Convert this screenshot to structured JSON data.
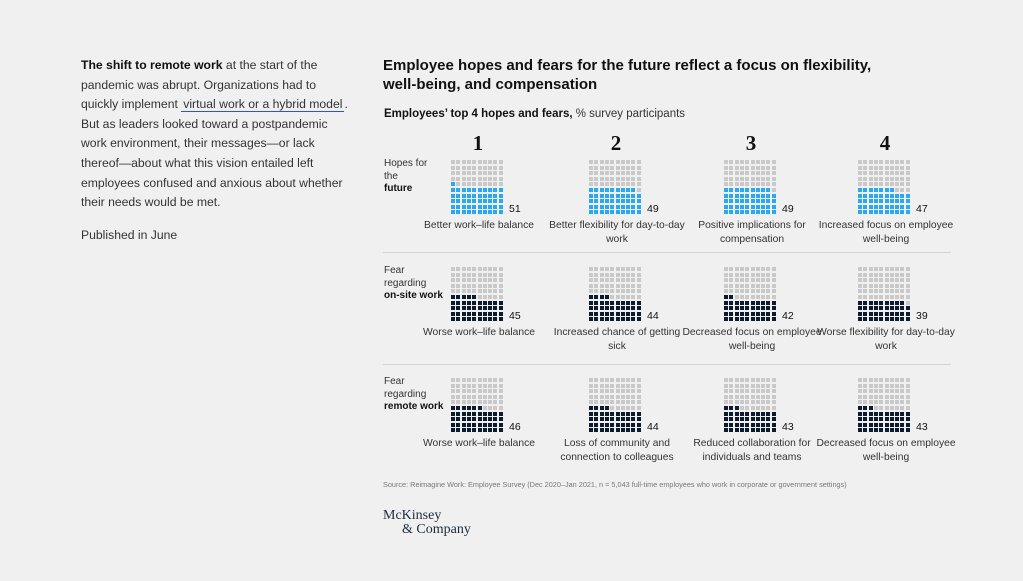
{
  "intro": {
    "bold_lead": "The shift to remote work",
    "text_a": " at the start of the pandemic was abrupt. Organizations had to quickly implement ",
    "link": "virtual work or a hybrid model",
    "text_b": ". But as leaders looked toward a postpandemic work environment, their messages—or lack thereof—about what this vision entailed left employees confused and anxious about whether their needs would be met.",
    "published": "Published in June"
  },
  "chart_data": {
    "type": "waffle",
    "title": "Employee hopes and fears for the future reflect a focus on flexibility, well-being, and compensation",
    "subtitle_bold": "Employees’ top 4 hopes and fears,",
    "subtitle_rest": " % survey participants",
    "ranks": [
      "1",
      "2",
      "3",
      "4"
    ],
    "colors": {
      "hope": "#2aa8f2",
      "fear": "#0c1b2e",
      "empty": "#c9c9c9"
    },
    "rows": [
      {
        "label_pre": "Hopes for the",
        "label_bold": "future",
        "kind": "hope",
        "items": [
          {
            "value": 51,
            "label": "Better work–life balance"
          },
          {
            "value": 49,
            "label": "Better flexibility for day-to-day work"
          },
          {
            "value": 49,
            "label": "Positive implications for compensation"
          },
          {
            "value": 47,
            "label": "Increased focus on employee well-being"
          }
        ]
      },
      {
        "label_pre": "Fear regarding",
        "label_bold": "on-site work",
        "kind": "fear",
        "items": [
          {
            "value": 45,
            "label": "Worse work–life balance"
          },
          {
            "value": 44,
            "label": "Increased chance of getting sick"
          },
          {
            "value": 42,
            "label": "Decreased focus on employee well-being"
          },
          {
            "value": 39,
            "label": "Worse flexibility for day-to-day work"
          }
        ]
      },
      {
        "label_pre": "Fear regarding",
        "label_bold": "remote work",
        "kind": "fear",
        "items": [
          {
            "value": 46,
            "label": "Worse work–life balance"
          },
          {
            "value": 44,
            "label": "Loss of community and connection to colleagues"
          },
          {
            "value": 43,
            "label": "Reduced collaboration for individuals and teams"
          },
          {
            "value": 43,
            "label": "Decreased focus on employee well-being"
          }
        ]
      }
    ],
    "source": "Source: Reimagine Work: Employee Survey (Dec 2020–Jan 2021, n = 5,043 full-time employees who work in corporate or government settings)"
  },
  "logo": {
    "line1": "McKinsey",
    "line2": "& Company"
  }
}
